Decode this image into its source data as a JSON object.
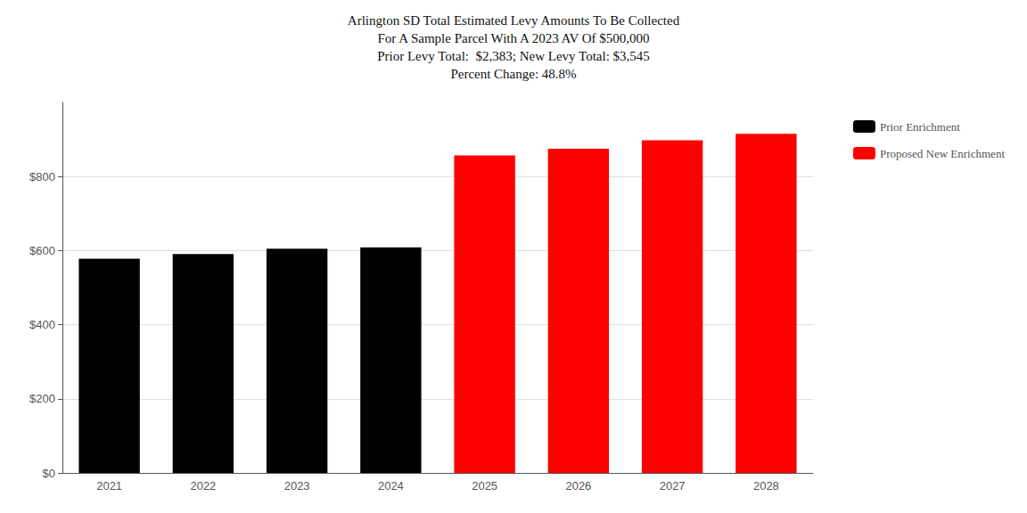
{
  "chart_data": {
    "type": "bar",
    "title": "Arlington SD Total Estimated Levy Amounts To Be Collected\nFor A Sample Parcel With A 2023 AV Of $500,000\nPrior Levy Total:  $2,383; New Levy Total: $3,545\nPercent Change: 48.8%",
    "categories": [
      "2021",
      "2022",
      "2023",
      "2024",
      "2025",
      "2026",
      "2027",
      "2028"
    ],
    "series": [
      {
        "name": "Prior Enrichment",
        "color": "#000000",
        "values": [
          578,
          591,
          605,
          609,
          null,
          null,
          null,
          null
        ]
      },
      {
        "name": "Proposed New Enrichment",
        "color": "#ff0000",
        "values": [
          null,
          null,
          null,
          null,
          857,
          875,
          898,
          915
        ]
      }
    ],
    "ylim": [
      0,
      1000
    ],
    "yticks": [
      {
        "value": 0,
        "label": "$0"
      },
      {
        "value": 200,
        "label": "$200"
      },
      {
        "value": 400,
        "label": "$400"
      },
      {
        "value": 600,
        "label": "$600"
      },
      {
        "value": 800,
        "label": "$800"
      }
    ],
    "grid": true,
    "legend": "upper right"
  }
}
